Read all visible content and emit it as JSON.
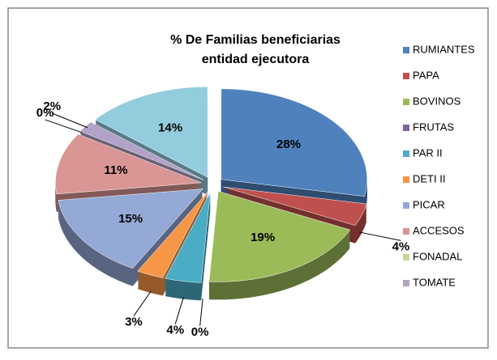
{
  "chart_data": {
    "type": "pie",
    "title": [
      "% De Familias beneficiarias",
      "entidad ejecutora"
    ],
    "categories": [
      "RUMIANTES",
      "PAPA",
      "BOVINOS",
      "FRUTAS",
      "PAR II",
      "DETI II",
      "PICAR",
      "ACCESOS",
      "FONADAL",
      "TOMATE",
      null
    ],
    "values": [
      28,
      4,
      19,
      0,
      4,
      3,
      15,
      11,
      0,
      2,
      14
    ],
    "value_labels": [
      "28%",
      "4%",
      "19%",
      "0%",
      "4%",
      "3%",
      "15%",
      "11%",
      "0%",
      "2%",
      "14%"
    ],
    "colors": [
      "#4f81bd",
      "#c0504d",
      "#9bbb59",
      "#8064a2",
      "#4bacc6",
      "#f79646",
      "#95a9d6",
      "#da9694",
      "#c3d69b",
      "#b2a2c7",
      "#93cddd"
    ],
    "legend": "right"
  }
}
